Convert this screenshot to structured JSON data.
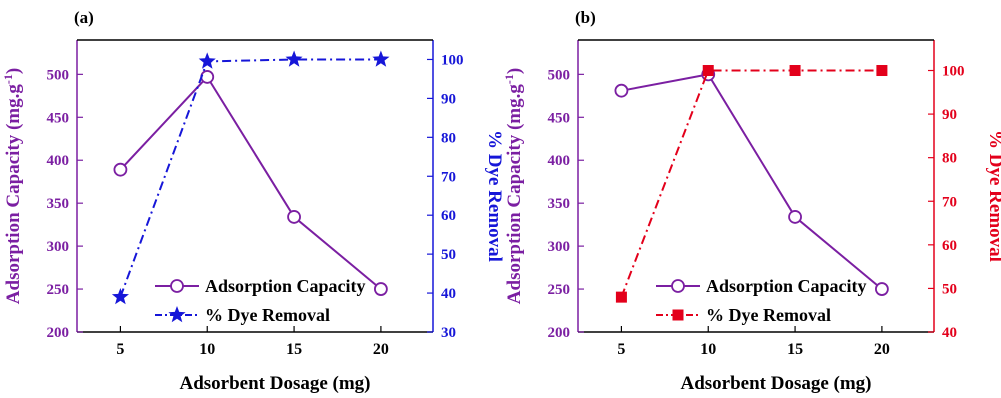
{
  "chart_data": [
    {
      "type": "line",
      "panel_label": "(a)",
      "xlabel": "Adsorbent Dosage (mg)",
      "ylabel_left": "Adsorption Capacity (mg.g",
      "ylabel_left_sup": "-1",
      "ylabel_left_close": ")",
      "ylabel_right": "% Dye Removal",
      "x": [
        5,
        10,
        15,
        20
      ],
      "xlim": [
        2.5,
        23
      ],
      "x_ticks": [
        5,
        10,
        15,
        20
      ],
      "ylim_left": [
        200,
        540
      ],
      "ylim_right": [
        30,
        105
      ],
      "y_ticks_left": [
        200,
        250,
        300,
        350,
        400,
        450,
        500
      ],
      "y_ticks_right": [
        30,
        40,
        50,
        60,
        70,
        80,
        90,
        100
      ],
      "colors": {
        "left": "#7b1fa2",
        "right": "#1616d8"
      },
      "series": [
        {
          "name": "Adsorption Capacity",
          "axis": "left",
          "marker": "open-circle",
          "line": "solid",
          "values": [
            389,
            497,
            334,
            250
          ]
        },
        {
          "name": "% Dye Removal",
          "axis": "right",
          "marker": "star",
          "line": "dash-dot",
          "values": [
            39,
            99.5,
            100,
            100
          ]
        }
      ],
      "legend": "bottom-left"
    },
    {
      "type": "line",
      "panel_label": "(b)",
      "xlabel": "Adsorbent Dosage (mg)",
      "ylabel_left": "Adsorption Capacity (mg.g",
      "ylabel_left_sup": "-1",
      "ylabel_left_close": ")",
      "ylabel_right": "% Dye Removal",
      "x": [
        5,
        10,
        15,
        20
      ],
      "xlim": [
        2.5,
        23
      ],
      "x_ticks": [
        5,
        10,
        15,
        20
      ],
      "ylim_left": [
        200,
        540
      ],
      "ylim_right": [
        40,
        107
      ],
      "y_ticks_left": [
        200,
        250,
        300,
        350,
        400,
        450,
        500
      ],
      "y_ticks_right": [
        40,
        50,
        60,
        70,
        80,
        90,
        100
      ],
      "colors": {
        "left": "#7b1fa2",
        "right": "#e3001b"
      },
      "series": [
        {
          "name": "Adsorption Capacity",
          "axis": "left",
          "marker": "open-circle",
          "line": "solid",
          "values": [
            481,
            500,
            334,
            250
          ]
        },
        {
          "name": "% Dye Removal",
          "axis": "right",
          "marker": "square",
          "line": "dash-dot",
          "values": [
            48,
            100,
            100,
            100
          ]
        }
      ],
      "legend": "bottom-left"
    }
  ]
}
